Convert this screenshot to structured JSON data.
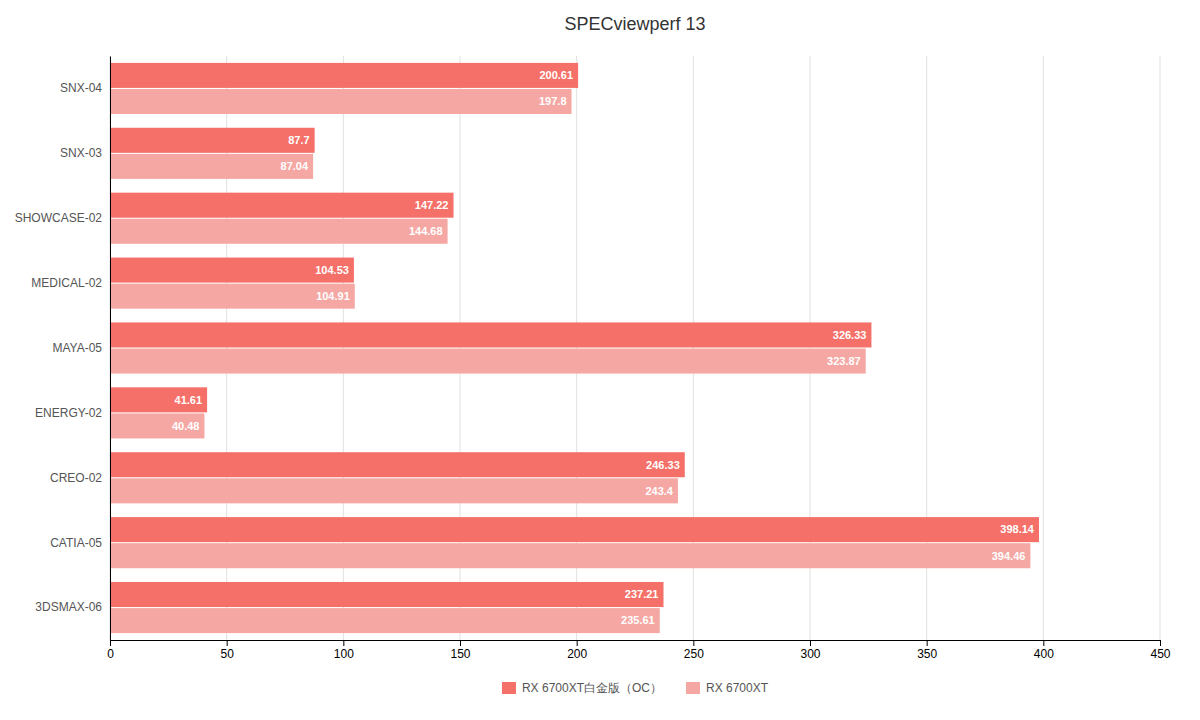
{
  "chart_data": {
    "type": "bar",
    "orientation": "horizontal",
    "title": "SPECviewperf 13",
    "categories": [
      "3DSMAX-06",
      "CATIA-05",
      "CREO-02",
      "ENERGY-02",
      "MAYA-05",
      "MEDICAL-02",
      "SHOWCASE-02",
      "SNX-03",
      "SNX-04"
    ],
    "series": [
      {
        "name": "RX 6700XT白金版（OC）",
        "color": "#f47068",
        "values": [
          237.21,
          398.14,
          246.33,
          41.61,
          326.33,
          104.53,
          147.22,
          87.7,
          200.61
        ]
      },
      {
        "name": "RX 6700XT",
        "color": "#f5a8a3",
        "values": [
          235.61,
          394.46,
          243.4,
          40.48,
          323.87,
          104.91,
          144.68,
          87.04,
          197.8
        ]
      }
    ],
    "xlim": [
      0,
      450
    ],
    "xticks": [
      0,
      50,
      100,
      150,
      200,
      250,
      300,
      350,
      400,
      450
    ],
    "grid": true,
    "data_labels": true,
    "legend": "bottom"
  }
}
